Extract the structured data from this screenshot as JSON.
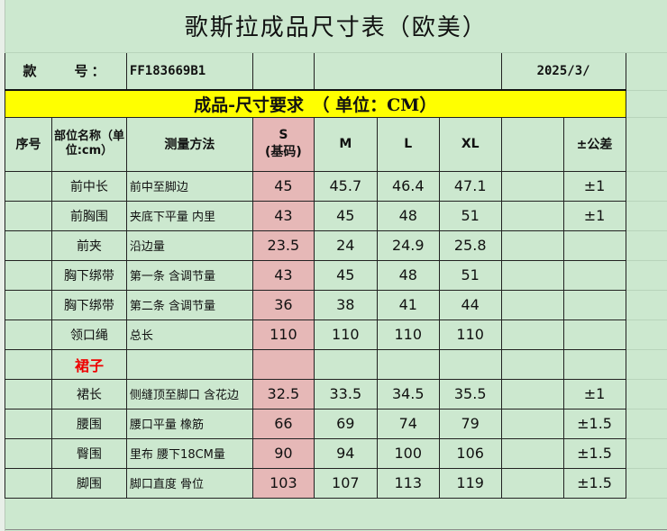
{
  "title": "歌斯拉成品尺寸表（欧美）",
  "style_label": "款　　号：",
  "style_no": "FF183669B1",
  "date": "2025/3/",
  "section_title": "成品-尺寸要求　（ 单位：CM）",
  "headers": {
    "index": "序号",
    "part": "部位名称（单位:cm）",
    "method": "测量方法",
    "s": "S",
    "s_sub": "(基码)",
    "m": "M",
    "l": "L",
    "xl": "XL",
    "blank": "",
    "tolerance": "±公差"
  },
  "colors": {
    "background": "#cce8cf",
    "base_size": "#e6b8b7",
    "section": "#ffff00",
    "category": "#ee0000"
  },
  "rows": [
    {
      "part": "前中长",
      "method": "前中至脚边",
      "s": "45",
      "m": "45.7",
      "l": "46.4",
      "xl": "47.1",
      "tol": "±1"
    },
    {
      "part": "前胸围",
      "method": "夹底下平量  内里",
      "s": "43",
      "m": "45",
      "l": "48",
      "xl": "51",
      "tol": "±1"
    },
    {
      "part": "前夹",
      "method": "沿边量",
      "s": "23.5",
      "m": "24",
      "l": "24.9",
      "xl": "25.8",
      "tol": ""
    },
    {
      "part": "胸下绑带",
      "method": "第一条  含调节量",
      "s": "43",
      "m": "45",
      "l": "48",
      "xl": "51",
      "tol": ""
    },
    {
      "part": "胸下绑带",
      "method": "第二条  含调节量",
      "s": "36",
      "m": "38",
      "l": "41",
      "xl": "44",
      "tol": ""
    },
    {
      "part": "领口绳",
      "method": "总长",
      "s": "110",
      "m": "110",
      "l": "110",
      "xl": "110",
      "tol": ""
    },
    {
      "part": "裙子",
      "method": "",
      "s": "",
      "m": "",
      "l": "",
      "xl": "",
      "tol": "",
      "category": true
    },
    {
      "part": "裙长",
      "method": "侧缝顶至脚口  含花边",
      "s": "32.5",
      "m": "33.5",
      "l": "34.5",
      "xl": "35.5",
      "tol": "±1"
    },
    {
      "part": "腰围",
      "method": "腰口平量  橡筋",
      "s": "66",
      "m": "69",
      "l": "74",
      "xl": "79",
      "tol": "±1.5"
    },
    {
      "part": "臀围",
      "method": "里布  腰下18CM量",
      "s": "90",
      "m": "94",
      "l": "100",
      "xl": "106",
      "tol": "±1.5"
    },
    {
      "part": "脚围",
      "method": "脚口直度  骨位",
      "s": "103",
      "m": "107",
      "l": "113",
      "xl": "119",
      "tol": "±1.5"
    }
  ]
}
